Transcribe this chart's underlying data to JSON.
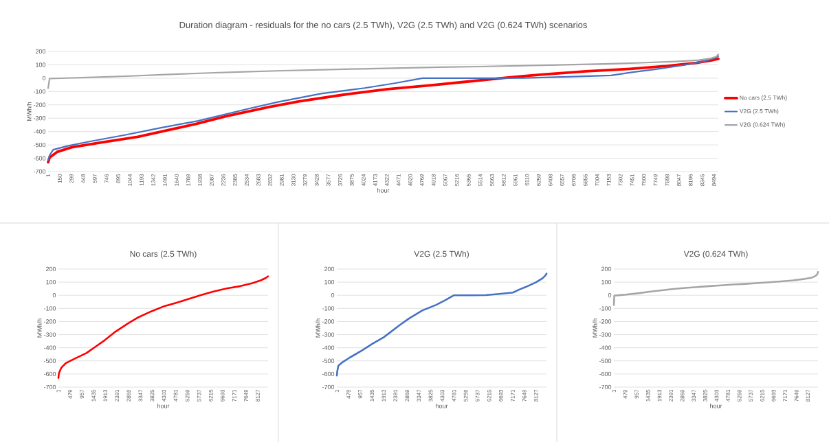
{
  "chart_data": [
    {
      "type": "line",
      "title": "Duration diagram - residuals for the no cars (2.5 TWh), V2G (2.5 TWh) and V2G (0.624 TWh) scenarios",
      "xlabel": "hour",
      "ylabel": "MWh/h",
      "xlim": [
        1,
        8550
      ],
      "xticks": [
        1,
        150,
        299,
        448,
        597,
        746,
        895,
        1044,
        1193,
        1342,
        1491,
        1640,
        1789,
        1938,
        2087,
        2236,
        2385,
        2534,
        2683,
        2832,
        2981,
        3130,
        3279,
        3428,
        3577,
        3726,
        3875,
        4024,
        4173,
        4322,
        4471,
        4620,
        4769,
        4918,
        5067,
        5216,
        5365,
        5514,
        5663,
        5812,
        5961,
        6110,
        6259,
        6408,
        6557,
        6706,
        6855,
        7004,
        7153,
        7302,
        7451,
        7600,
        7749,
        7898,
        8047,
        8196,
        8345,
        8494
      ],
      "ylim": [
        -700,
        200
      ],
      "yticks": [
        -700,
        -600,
        -500,
        -400,
        -300,
        -200,
        -100,
        0,
        100,
        200
      ],
      "grid": "y",
      "legend": "right",
      "series": [
        {
          "name": "No cars (2.5 TWh)",
          "color": "#ff0000",
          "x": [
            1,
            20,
            115,
            300,
            675,
            1144,
            1519,
            1894,
            2269,
            2831,
            3206,
            3769,
            4331,
            4893,
            5362,
            5830,
            6299,
            6862,
            7424,
            7893,
            8268,
            8456,
            8550
          ],
          "values": [
            -630,
            -595,
            -553,
            -518,
            -482,
            -440,
            -391,
            -342,
            -285,
            -215,
            -173,
            -124,
            -82,
            -53,
            -25,
            3,
            27,
            52,
            70,
            91,
            115,
            132,
            145
          ]
        },
        {
          "name": "V2G (2.5 TWh)",
          "color": "#4472c4",
          "x": [
            1,
            20,
            66,
            250,
            527,
            990,
            1452,
            1914,
            2561,
            2931,
            3485,
            4040,
            4410,
            4779,
            5500,
            6073,
            6628,
            7182,
            7459,
            7737,
            8106,
            8383,
            8500,
            8550
          ],
          "values": [
            -612,
            -578,
            -536,
            -508,
            -475,
            -425,
            -370,
            -320,
            -228,
            -179,
            -116,
            -74,
            -39,
            0,
            0,
            1,
            10,
            21,
            45,
            66,
            97,
            129,
            150,
            165
          ]
        },
        {
          "name": "V2G (0.624 TWh)",
          "color": "#a5a5a5",
          "x": [
            1,
            20,
            300,
            500,
            1000,
            1500,
            2000,
            2500,
            3000,
            3500,
            4000,
            4500,
            5000,
            5500,
            6000,
            6500,
            7000,
            7500,
            8000,
            8300,
            8450,
            8520,
            8550
          ],
          "values": [
            -75,
            -3,
            2,
            5,
            15,
            27,
            38,
            48,
            56,
            63,
            70,
            76,
            82,
            87,
            93,
            99,
            106,
            114,
            125,
            135,
            148,
            160,
            178
          ]
        }
      ]
    },
    {
      "type": "line",
      "title": "No cars (2.5 TWh)",
      "xlabel": "hour",
      "ylabel": "MWh/h",
      "xlim": [
        1,
        8550
      ],
      "xticks": [
        1,
        479,
        957,
        1435,
        1913,
        2391,
        2869,
        3347,
        3825,
        4303,
        4781,
        5259,
        5737,
        6215,
        6693,
        7171,
        7649,
        8127
      ],
      "ylim": [
        -700,
        200
      ],
      "yticks": [
        -700,
        -600,
        -500,
        -400,
        -300,
        -200,
        -100,
        0,
        100,
        200
      ],
      "grid": "y",
      "series": [
        {
          "color": "#ff0000",
          "x": [
            1,
            20,
            115,
            300,
            675,
            1144,
            1519,
            1894,
            2269,
            2831,
            3206,
            3769,
            4331,
            4893,
            5362,
            5830,
            6299,
            6862,
            7424,
            7893,
            8268,
            8456,
            8550
          ],
          "values": [
            -630,
            -595,
            -553,
            -518,
            -482,
            -440,
            -391,
            -342,
            -285,
            -215,
            -173,
            -124,
            -82,
            -53,
            -25,
            3,
            27,
            52,
            70,
            91,
            115,
            132,
            145
          ]
        }
      ]
    },
    {
      "type": "line",
      "title": "V2G (2.5 TWh)",
      "xlabel": "hour",
      "ylabel": "MWh/h",
      "xlim": [
        1,
        8550
      ],
      "xticks": [
        1,
        479,
        957,
        1435,
        1913,
        2391,
        2869,
        3347,
        3825,
        4303,
        4781,
        5259,
        5737,
        6215,
        6693,
        7171,
        7649,
        8127
      ],
      "ylim": [
        -700,
        200
      ],
      "yticks": [
        -700,
        -600,
        -500,
        -400,
        -300,
        -200,
        -100,
        0,
        100,
        200
      ],
      "grid": "y",
      "series": [
        {
          "color": "#4472c4",
          "x": [
            1,
            20,
            66,
            250,
            527,
            990,
            1452,
            1914,
            2561,
            2931,
            3485,
            4040,
            4410,
            4779,
            5500,
            6073,
            6628,
            7182,
            7459,
            7737,
            8106,
            8383,
            8500,
            8550
          ],
          "values": [
            -612,
            -578,
            -536,
            -508,
            -475,
            -425,
            -370,
            -320,
            -228,
            -179,
            -116,
            -74,
            -39,
            0,
            0,
            1,
            10,
            21,
            45,
            66,
            97,
            129,
            150,
            165
          ]
        }
      ]
    },
    {
      "type": "line",
      "title": "V2G (0.624 TWh)",
      "xlabel": "hour",
      "ylabel": "MWh/h",
      "xlim": [
        1,
        8550
      ],
      "xticks": [
        1,
        479,
        957,
        1435,
        1913,
        2391,
        2869,
        3347,
        3825,
        4303,
        4781,
        5259,
        5737,
        6215,
        6693,
        7171,
        7649,
        8127
      ],
      "ylim": [
        -700,
        200
      ],
      "yticks": [
        -700,
        -600,
        -500,
        -400,
        -300,
        -200,
        -100,
        0,
        100,
        200
      ],
      "grid": "y",
      "series": [
        {
          "color": "#a5a5a5",
          "x": [
            1,
            20,
            300,
            500,
            1000,
            1500,
            2000,
            2500,
            3000,
            3500,
            4000,
            4500,
            5000,
            5500,
            6000,
            6500,
            7000,
            7500,
            8000,
            8300,
            8450,
            8520,
            8550
          ],
          "values": [
            -75,
            -3,
            2,
            5,
            15,
            27,
            38,
            48,
            56,
            63,
            70,
            76,
            82,
            87,
            93,
            99,
            106,
            114,
            125,
            135,
            148,
            160,
            178
          ]
        }
      ]
    }
  ]
}
